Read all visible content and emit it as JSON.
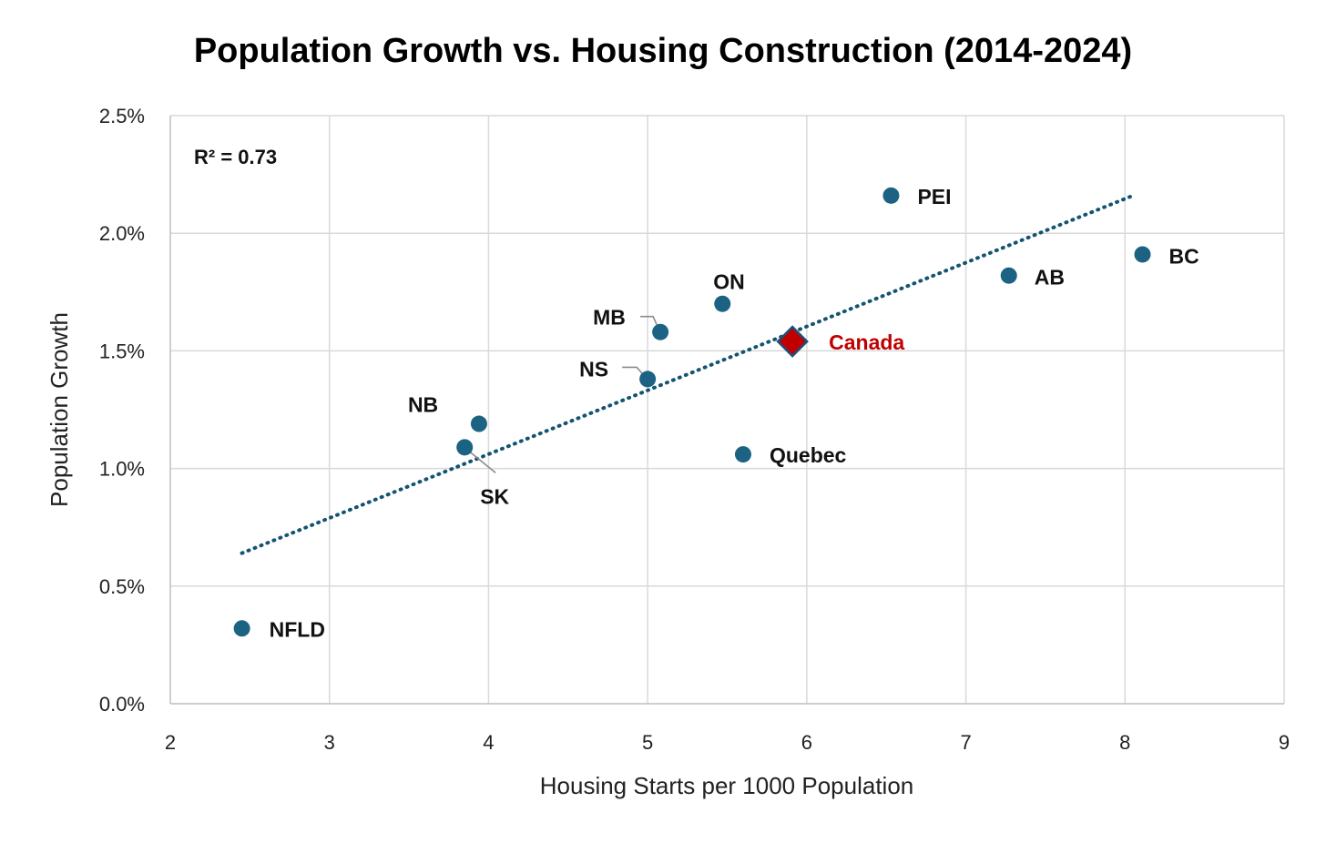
{
  "chart_data": {
    "type": "scatter",
    "title": "Population Growth vs. Housing Construction (2014-2024)",
    "xlabel": "Housing Starts per 1000 Population",
    "ylabel": "Population Growth",
    "xlim": [
      2,
      9
    ],
    "ylim": [
      0,
      0.025
    ],
    "x_ticks": [
      "2",
      "3",
      "4",
      "5",
      "6",
      "7",
      "8",
      "9"
    ],
    "y_ticks": [
      "0.0%",
      "0.5%",
      "1.0%",
      "1.5%",
      "2.0%",
      "2.5%"
    ],
    "grid": true,
    "points": [
      {
        "label": "NFLD",
        "x": 2.45,
        "y": 0.0032
      },
      {
        "label": "SK",
        "x": 3.85,
        "y": 0.0109
      },
      {
        "label": "NB",
        "x": 3.94,
        "y": 0.0119
      },
      {
        "label": "NS",
        "x": 5.0,
        "y": 0.0138
      },
      {
        "label": "MB",
        "x": 5.08,
        "y": 0.0158
      },
      {
        "label": "ON",
        "x": 5.47,
        "y": 0.017
      },
      {
        "label": "Quebec",
        "x": 5.6,
        "y": 0.0106
      },
      {
        "label": "PEI",
        "x": 6.53,
        "y": 0.0216
      },
      {
        "label": "AB",
        "x": 7.27,
        "y": 0.0182
      },
      {
        "label": "BC",
        "x": 8.11,
        "y": 0.0191
      }
    ],
    "highlight": {
      "label": "Canada",
      "x": 5.91,
      "y": 0.0154,
      "marker": "diamond"
    },
    "trendline": {
      "style": "dotted",
      "x_start": 2.45,
      "y_start": 0.0064,
      "x_end": 8.05,
      "y_end": 0.0216
    },
    "annotation": "R² = 0.73",
    "colors": {
      "point": "#1b6283",
      "trend": "#135470",
      "highlight": "#c00000",
      "grid": "#d9d9d9"
    }
  }
}
